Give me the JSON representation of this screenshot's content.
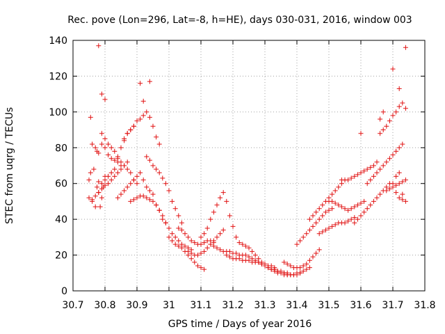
{
  "chart_data": {
    "type": "scatter",
    "title": "Rec. pove (Lon=296, Lat=-8, h=HE), days 030-031, 2016, window 003",
    "xlabel": "GPS time / Days of year 2016",
    "ylabel": "STEC from uqrg / TECUs",
    "xlim": [
      30.7,
      31.8
    ],
    "ylim": [
      0,
      140
    ],
    "xticks": [
      "30.7",
      "30.8",
      "30.9",
      "31",
      "31.1",
      "31.2",
      "31.3",
      "31.4",
      "31.5",
      "31.6",
      "31.7",
      "31.8"
    ],
    "yticks": [
      "0",
      "20",
      "40",
      "60",
      "80",
      "100",
      "120",
      "140"
    ],
    "grid": true,
    "marker": "plus",
    "marker_color": "#e01010",
    "x": [
      30.75,
      30.75,
      30.755,
      30.76,
      30.765,
      30.77,
      30.775,
      30.78,
      30.785,
      30.79,
      30.795,
      30.8,
      30.755,
      30.76,
      30.77,
      30.775,
      30.78,
      30.79,
      30.8,
      30.81,
      30.82,
      30.83,
      30.84,
      30.85,
      30.76,
      30.77,
      30.78,
      30.79,
      30.8,
      30.81,
      30.82,
      30.83,
      30.84,
      30.85,
      30.86,
      30.87,
      30.78,
      30.79,
      30.8,
      30.81,
      30.82,
      30.83,
      30.84,
      30.85,
      30.86,
      30.87,
      30.88,
      30.89,
      30.79,
      30.8,
      30.81,
      30.82,
      30.83,
      30.84,
      30.85,
      30.86,
      30.87,
      30.88,
      30.89,
      30.9,
      30.84,
      30.85,
      30.86,
      30.87,
      30.88,
      30.89,
      30.9,
      30.91,
      30.92,
      30.93,
      30.94,
      30.95,
      30.86,
      30.87,
      30.88,
      30.89,
      30.9,
      30.91,
      30.92,
      30.93,
      30.94,
      30.95,
      30.96,
      30.97,
      30.88,
      30.89,
      30.9,
      30.91,
      30.92,
      30.93,
      30.94,
      30.95,
      30.96,
      30.97,
      30.98,
      30.99,
      30.93,
      30.94,
      30.95,
      30.96,
      30.97,
      30.98,
      30.99,
      31.0,
      31.01,
      31.02,
      31.03,
      31.04,
      30.96,
      30.97,
      30.98,
      30.99,
      31.0,
      31.01,
      31.02,
      31.03,
      31.04,
      31.05,
      31.06,
      31.07,
      31.0,
      31.01,
      31.02,
      31.03,
      31.04,
      31.05,
      31.06,
      31.07,
      31.08,
      31.09,
      31.1,
      31.11,
      31.03,
      31.04,
      31.05,
      31.06,
      31.07,
      31.08,
      31.09,
      31.1,
      31.11,
      31.12,
      31.13,
      31.14,
      31.06,
      31.07,
      31.08,
      31.09,
      31.1,
      31.11,
      31.12,
      31.13,
      31.14,
      31.15,
      31.16,
      31.17,
      31.1,
      31.11,
      31.12,
      31.13,
      31.14,
      31.15,
      31.16,
      31.17,
      31.18,
      31.19,
      31.2,
      31.21,
      31.14,
      31.15,
      31.16,
      31.17,
      31.18,
      31.19,
      31.2,
      31.21,
      31.22,
      31.23,
      31.24,
      31.25,
      31.18,
      31.19,
      31.2,
      31.21,
      31.22,
      31.23,
      31.24,
      31.25,
      31.26,
      31.27,
      31.28,
      31.29,
      31.22,
      31.23,
      31.24,
      31.25,
      31.26,
      31.27,
      31.28,
      31.29,
      31.3,
      31.31,
      31.32,
      31.33,
      31.26,
      31.27,
      31.28,
      31.29,
      31.3,
      31.31,
      31.32,
      31.33,
      31.34,
      31.35,
      31.36,
      31.37,
      31.3,
      31.31,
      31.32,
      31.33,
      31.34,
      31.35,
      31.36,
      31.37,
      31.38,
      31.39,
      31.4,
      31.41,
      31.33,
      31.34,
      31.35,
      31.36,
      31.37,
      31.38,
      31.39,
      31.4,
      31.41,
      31.42,
      31.43,
      31.44,
      31.36,
      31.37,
      31.38,
      31.39,
      31.4,
      31.41,
      31.42,
      31.43,
      31.44,
      31.45,
      31.46,
      31.47,
      31.4,
      31.41,
      31.42,
      31.43,
      31.44,
      31.45,
      31.46,
      31.47,
      31.48,
      31.49,
      31.5,
      31.51,
      31.44,
      31.45,
      31.46,
      31.47,
      31.48,
      31.49,
      31.5,
      31.51,
      31.52,
      31.53,
      31.54,
      31.55,
      31.47,
      31.48,
      31.49,
      31.5,
      31.51,
      31.52,
      31.53,
      31.54,
      31.55,
      31.56,
      31.57,
      31.58,
      31.5,
      31.51,
      31.52,
      31.53,
      31.54,
      31.55,
      31.56,
      31.57,
      31.58,
      31.59,
      31.6,
      31.61,
      31.54,
      31.55,
      31.56,
      31.57,
      31.58,
      31.59,
      31.6,
      31.61,
      31.62,
      31.63,
      31.64,
      31.65,
      31.58,
      31.59,
      31.6,
      31.61,
      31.62,
      31.63,
      31.64,
      31.65,
      31.66,
      31.67,
      31.68,
      31.69,
      31.62,
      31.63,
      31.64,
      31.65,
      31.66,
      31.67,
      31.68,
      31.69,
      31.7,
      31.71,
      31.72,
      31.73,
      31.66,
      31.67,
      31.68,
      31.69,
      31.7,
      31.71,
      31.72,
      31.73,
      31.74,
      31.7,
      31.71,
      31.72,
      31.68,
      31.69,
      31.7,
      31.71,
      31.72,
      31.73,
      31.74,
      31.72,
      31.73,
      31.74,
      31.71,
      31.73,
      30.78,
      30.79,
      30.8,
      30.91,
      30.92,
      30.94,
      31.72,
      31.74,
      31.7,
      31.66,
      31.67,
      31.6
    ],
    "y": [
      62,
      52,
      66,
      50,
      68,
      47,
      58,
      55,
      47,
      52,
      58,
      64,
      97,
      82,
      80,
      78,
      77,
      82,
      80,
      76,
      74,
      73,
      72,
      70,
      51,
      53,
      55,
      57,
      59,
      60,
      62,
      64,
      66,
      68,
      70,
      72,
      61,
      60,
      62,
      64,
      66,
      68,
      74,
      80,
      84,
      88,
      90,
      92,
      88,
      85,
      82,
      80,
      78,
      75,
      72,
      70,
      68,
      66,
      62,
      60,
      52,
      54,
      56,
      58,
      60,
      62,
      64,
      66,
      62,
      58,
      56,
      54,
      85,
      88,
      90,
      92,
      95,
      96,
      98,
      100,
      97,
      92,
      86,
      82,
      50,
      51,
      52,
      53,
      53,
      52,
      51,
      50,
      48,
      45,
      42,
      38,
      75,
      73,
      70,
      68,
      66,
      63,
      60,
      56,
      50,
      46,
      42,
      38,
      48,
      45,
      40,
      38,
      35,
      32,
      30,
      28,
      26,
      25,
      24,
      23,
      30,
      28,
      26,
      25,
      24,
      22,
      20,
      18,
      16,
      14,
      13,
      12,
      35,
      34,
      32,
      30,
      28,
      27,
      26,
      26,
      27,
      28,
      28,
      27,
      22,
      21,
      20,
      20,
      21,
      22,
      24,
      26,
      28,
      30,
      32,
      34,
      30,
      32,
      35,
      40,
      44,
      48,
      52,
      55,
      50,
      42,
      36,
      30,
      25,
      24,
      23,
      22,
      22,
      22,
      21,
      21,
      20,
      20,
      20,
      19,
      20,
      19,
      18,
      18,
      18,
      17,
      17,
      17,
      16,
      16,
      16,
      15,
      27,
      26,
      25,
      24,
      22,
      20,
      18,
      16,
      15,
      14,
      14,
      13,
      18,
      17,
      16,
      15,
      14,
      13,
      12,
      12,
      11,
      11,
      10,
      10,
      14,
      13,
      12,
      11,
      10,
      10,
      9,
      9,
      9,
      9,
      9,
      10,
      12,
      11,
      10,
      10,
      9,
      9,
      9,
      10,
      10,
      11,
      12,
      13,
      16,
      15,
      14,
      13,
      13,
      13,
      14,
      15,
      17,
      19,
      21,
      23,
      26,
      28,
      30,
      32,
      34,
      36,
      38,
      40,
      42,
      44,
      45,
      46,
      40,
      42,
      44,
      46,
      48,
      50,
      52,
      54,
      56,
      58,
      60,
      62,
      32,
      33,
      34,
      35,
      36,
      37,
      38,
      38,
      38,
      39,
      40,
      41,
      50,
      50,
      49,
      48,
      47,
      46,
      45,
      46,
      47,
      48,
      49,
      50,
      62,
      62,
      62,
      63,
      64,
      65,
      66,
      67,
      68,
      69,
      70,
      72,
      38,
      40,
      42,
      44,
      46,
      48,
      50,
      52,
      54,
      56,
      58,
      60,
      60,
      62,
      64,
      66,
      68,
      70,
      72,
      74,
      76,
      78,
      80,
      82,
      88,
      90,
      92,
      95,
      98,
      100,
      103,
      105,
      102,
      60,
      64,
      66,
      56,
      57,
      58,
      59,
      60,
      61,
      62,
      52,
      51,
      50,
      55,
      54,
      137,
      110,
      107,
      116,
      106,
      117,
      113,
      136,
      124,
      96,
      100,
      88
    ]
  }
}
